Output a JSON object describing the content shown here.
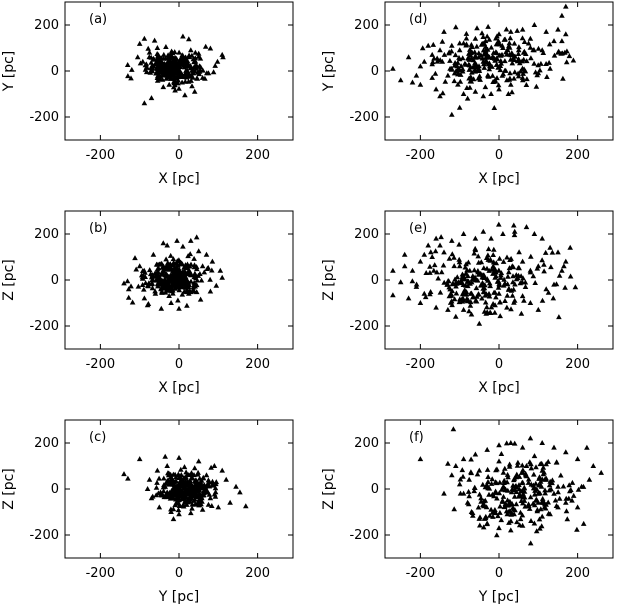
{
  "chart_data": [
    {
      "type": "scatter",
      "panel": "(a)",
      "xlabel": "X [pc]",
      "ylabel": "Y [pc]",
      "xlim": [
        -290,
        290
      ],
      "ylim": [
        -300,
        300
      ],
      "xticks": [
        "-200",
        "0",
        "200"
      ],
      "yticks": [
        "-200",
        "0",
        "200"
      ],
      "xtick_values": [
        -200,
        0,
        200
      ],
      "ytick_values": [
        -200,
        0,
        200
      ],
      "cloud": {
        "cx": -15,
        "cy": 15,
        "sx": 33,
        "sy": 30,
        "n": 320
      },
      "points": [
        [
          -88,
          140
        ],
        [
          -62,
          132
        ],
        [
          -100,
          118
        ],
        [
          -122,
          -32
        ],
        [
          -130,
          -22
        ],
        [
          -120,
          5
        ],
        [
          -88,
          -140
        ],
        [
          -70,
          -118
        ],
        [
          10,
          150
        ],
        [
          25,
          138
        ],
        [
          68,
          105
        ],
        [
          80,
          98
        ],
        [
          110,
          70
        ],
        [
          112,
          60
        ],
        [
          98,
          40
        ],
        [
          92,
          22
        ],
        [
          40,
          -90
        ],
        [
          15,
          -105
        ],
        [
          -40,
          -70
        ],
        [
          -10,
          -85
        ],
        [
          60,
          -30
        ],
        [
          75,
          -10
        ],
        [
          -105,
          60
        ],
        [
          -92,
          40
        ],
        [
          -55,
          100
        ],
        [
          -25,
          -60
        ],
        [
          30,
          90
        ],
        [
          50,
          75
        ],
        [
          -75,
          80
        ],
        [
          88,
          -5
        ]
      ]
    },
    {
      "type": "scatter",
      "panel": "(b)",
      "xlabel": "X [pc]",
      "ylabel": "Z [pc]",
      "xlim": [
        -290,
        290
      ],
      "ylim": [
        -300,
        300
      ],
      "xticks": [
        "-200",
        "0",
        "200"
      ],
      "yticks": [
        "-200",
        "0",
        "200"
      ],
      "xtick_values": [
        -200,
        0,
        200
      ],
      "ytick_values": [
        -200,
        0,
        200
      ],
      "cloud": {
        "cx": -15,
        "cy": 10,
        "sx": 35,
        "sy": 38,
        "n": 340
      },
      "points": [
        [
          -40,
          160
        ],
        [
          -30,
          150
        ],
        [
          45,
          185
        ],
        [
          30,
          170
        ],
        [
          10,
          145
        ],
        [
          -112,
          95
        ],
        [
          -100,
          60
        ],
        [
          -140,
          -15
        ],
        [
          -128,
          -40
        ],
        [
          -118,
          -98
        ],
        [
          -80,
          -110
        ],
        [
          -45,
          -125
        ],
        [
          -20,
          -100
        ],
        [
          20,
          -112
        ],
        [
          55,
          -85
        ],
        [
          80,
          -50
        ],
        [
          95,
          -25
        ],
        [
          110,
          10
        ],
        [
          105,
          40
        ],
        [
          85,
          80
        ],
        [
          70,
          110
        ],
        [
          50,
          125
        ],
        [
          -65,
          110
        ],
        [
          -88,
          -80
        ],
        [
          0,
          -125
        ],
        [
          -5,
          170
        ],
        [
          25,
          -60
        ],
        [
          -60,
          -60
        ],
        [
          60,
          60
        ],
        [
          -95,
          20
        ]
      ]
    },
    {
      "type": "scatter",
      "panel": "(c)",
      "xlabel": "Y [pc]",
      "ylabel": "Z [pc]",
      "xlim": [
        -290,
        290
      ],
      "ylim": [
        -300,
        300
      ],
      "xticks": [
        "-200",
        "0",
        "200"
      ],
      "yticks": [
        "-200",
        "0",
        "200"
      ],
      "xtick_values": [
        -200,
        0,
        200
      ],
      "ytick_values": [
        -200,
        0,
        200
      ],
      "cloud": {
        "cx": 20,
        "cy": -5,
        "sx": 33,
        "sy": 38,
        "n": 330
      },
      "points": [
        [
          -140,
          65
        ],
        [
          -130,
          45
        ],
        [
          -100,
          130
        ],
        [
          -35,
          140
        ],
        [
          0,
          135
        ],
        [
          50,
          120
        ],
        [
          40,
          90
        ],
        [
          90,
          100
        ],
        [
          110,
          80
        ],
        [
          120,
          40
        ],
        [
          145,
          10
        ],
        [
          155,
          -15
        ],
        [
          170,
          -75
        ],
        [
          130,
          -60
        ],
        [
          100,
          -80
        ],
        [
          60,
          -90
        ],
        [
          30,
          -105
        ],
        [
          0,
          -110
        ],
        [
          -20,
          -100
        ],
        [
          -50,
          -80
        ],
        [
          -70,
          -40
        ],
        [
          -80,
          0
        ],
        [
          -75,
          40
        ],
        [
          -55,
          80
        ],
        [
          -30,
          100
        ],
        [
          80,
          -40
        ],
        [
          95,
          30
        ],
        [
          -10,
          -70
        ],
        [
          70,
          60
        ],
        [
          -45,
          -20
        ]
      ]
    },
    {
      "type": "scatter",
      "panel": "(d)",
      "xlabel": "X [pc]",
      "ylabel": "Y [pc]",
      "xlim": [
        -290,
        290
      ],
      "ylim": [
        -300,
        300
      ],
      "xticks": [
        "-200",
        "0",
        "200"
      ],
      "yticks": [
        "-200",
        "0",
        "200"
      ],
      "xtick_values": [
        -200,
        0,
        200
      ],
      "ytick_values": [
        -200,
        0,
        200
      ],
      "cloud": {
        "cx": -20,
        "cy": 40,
        "sx": 75,
        "sy": 60,
        "n": 260
      },
      "points": [
        [
          -270,
          10
        ],
        [
          -250,
          -40
        ],
        [
          -230,
          60
        ],
        [
          -210,
          -20
        ],
        [
          -200,
          20
        ],
        [
          -190,
          40
        ],
        [
          -170,
          -30
        ],
        [
          -160,
          -80
        ],
        [
          -150,
          -110
        ],
        [
          -130,
          -20
        ],
        [
          -120,
          -190
        ],
        [
          -100,
          -160
        ],
        [
          -90,
          -100
        ],
        [
          -80,
          -120
        ],
        [
          -60,
          -90
        ],
        [
          -40,
          -110
        ],
        [
          -20,
          -100
        ],
        [
          0,
          -80
        ],
        [
          30,
          -60
        ],
        [
          60,
          -30
        ],
        [
          100,
          -10
        ],
        [
          130,
          10
        ],
        [
          150,
          80
        ],
        [
          160,
          130
        ],
        [
          170,
          160
        ],
        [
          170,
          280
        ],
        [
          160,
          240
        ],
        [
          150,
          180
        ],
        [
          120,
          170
        ],
        [
          90,
          200
        ],
        [
          60,
          180
        ],
        [
          30,
          170
        ],
        [
          0,
          160
        ],
        [
          -30,
          150
        ],
        [
          -60,
          140
        ],
        [
          -90,
          120
        ],
        [
          -120,
          110
        ],
        [
          -150,
          90
        ],
        [
          -170,
          70
        ],
        [
          -180,
          110
        ],
        [
          -140,
          170
        ],
        [
          -100,
          120
        ],
        [
          -110,
          190
        ],
        [
          -70,
          80
        ],
        [
          -40,
          40
        ],
        [
          10,
          100
        ],
        [
          50,
          90
        ],
        [
          80,
          140
        ],
        [
          110,
          90
        ],
        [
          140,
          130
        ],
        [
          20,
          -40
        ],
        [
          -10,
          -40
        ],
        [
          -200,
          -60
        ],
        [
          -220,
          -50
        ]
      ]
    },
    {
      "type": "scatter",
      "panel": "(e)",
      "xlabel": "X [pc]",
      "ylabel": "Z [pc]",
      "xlim": [
        -290,
        290
      ],
      "ylim": [
        -300,
        300
      ],
      "xticks": [
        "-200",
        "0",
        "200"
      ],
      "yticks": [
        "-200",
        "0",
        "200"
      ],
      "xtick_values": [
        -200,
        0,
        200
      ],
      "ytick_values": [
        -200,
        0,
        200
      ],
      "cloud": {
        "cx": -40,
        "cy": 0,
        "sx": 80,
        "sy": 75,
        "n": 260
      },
      "points": [
        [
          -270,
          40
        ],
        [
          -250,
          -10
        ],
        [
          -240,
          110
        ],
        [
          -230,
          -80
        ],
        [
          -210,
          -30
        ],
        [
          -200,
          80
        ],
        [
          -190,
          -60
        ],
        [
          -180,
          150
        ],
        [
          -160,
          180
        ],
        [
          -140,
          120
        ],
        [
          -130,
          -130
        ],
        [
          -110,
          -160
        ],
        [
          -90,
          -130
        ],
        [
          -70,
          -150
        ],
        [
          -50,
          -190
        ],
        [
          -30,
          -140
        ],
        [
          -10,
          -110
        ],
        [
          20,
          -120
        ],
        [
          40,
          -90
        ],
        [
          60,
          -70
        ],
        [
          80,
          -100
        ],
        [
          100,
          -130
        ],
        [
          120,
          -40
        ],
        [
          140,
          -20
        ],
        [
          160,
          40
        ],
        [
          170,
          80
        ],
        [
          165,
          60
        ],
        [
          150,
          120
        ],
        [
          130,
          140
        ],
        [
          110,
          180
        ],
        [
          90,
          200
        ],
        [
          70,
          230
        ],
        [
          40,
          210
        ],
        [
          10,
          200
        ],
        [
          -20,
          180
        ],
        [
          -40,
          210
        ],
        [
          -60,
          180
        ],
        [
          -90,
          200
        ],
        [
          -120,
          170
        ],
        [
          -150,
          150
        ],
        [
          -170,
          100
        ],
        [
          -190,
          110
        ],
        [
          -220,
          40
        ],
        [
          -240,
          60
        ],
        [
          -200,
          -100
        ],
        [
          -160,
          -120
        ],
        [
          0,
          -60
        ],
        [
          60,
          80
        ],
        [
          100,
          60
        ],
        [
          -100,
          60
        ]
      ]
    },
    {
      "type": "scatter",
      "panel": "(f)",
      "xlabel": "Y [pc]",
      "ylabel": "Z [pc]",
      "xlim": [
        -290,
        290
      ],
      "ylim": [
        -300,
        300
      ],
      "xticks": [
        "-200",
        "0",
        "200"
      ],
      "yticks": [
        "-200",
        "0",
        "200"
      ],
      "xtick_values": [
        -200,
        0,
        200
      ],
      "ytick_values": [
        -200,
        0,
        200
      ],
      "cloud": {
        "cx": 40,
        "cy": -10,
        "sx": 70,
        "sy": 75,
        "n": 260
      },
      "points": [
        [
          -200,
          130
        ],
        [
          -130,
          110
        ],
        [
          -120,
          60
        ],
        [
          -100,
          20
        ],
        [
          -90,
          -20
        ],
        [
          -80,
          -60
        ],
        [
          -70,
          -100
        ],
        [
          -50,
          -130
        ],
        [
          -30,
          -150
        ],
        [
          0,
          -170
        ],
        [
          30,
          -180
        ],
        [
          60,
          -160
        ],
        [
          90,
          -150
        ],
        [
          110,
          -120
        ],
        [
          130,
          -110
        ],
        [
          150,
          -80
        ],
        [
          170,
          -60
        ],
        [
          190,
          -30
        ],
        [
          210,
          10
        ],
        [
          230,
          40
        ],
        [
          260,
          70
        ],
        [
          240,
          100
        ],
        [
          200,
          130
        ],
        [
          170,
          160
        ],
        [
          140,
          180
        ],
        [
          110,
          200
        ],
        [
          80,
          220
        ],
        [
          60,
          180
        ],
        [
          30,
          200
        ],
        [
          0,
          190
        ],
        [
          -30,
          170
        ],
        [
          -60,
          150
        ],
        [
          -90,
          130
        ],
        [
          -110,
          100
        ],
        [
          -50,
          80
        ],
        [
          120,
          40
        ],
        [
          150,
          10
        ],
        [
          180,
          -10
        ],
        [
          -140,
          -20
        ],
        [
          0,
          120
        ],
        [
          70,
          100
        ],
        [
          100,
          -60
        ],
        [
          -20,
          -90
        ],
        [
          200,
          -80
        ]
      ]
    }
  ]
}
